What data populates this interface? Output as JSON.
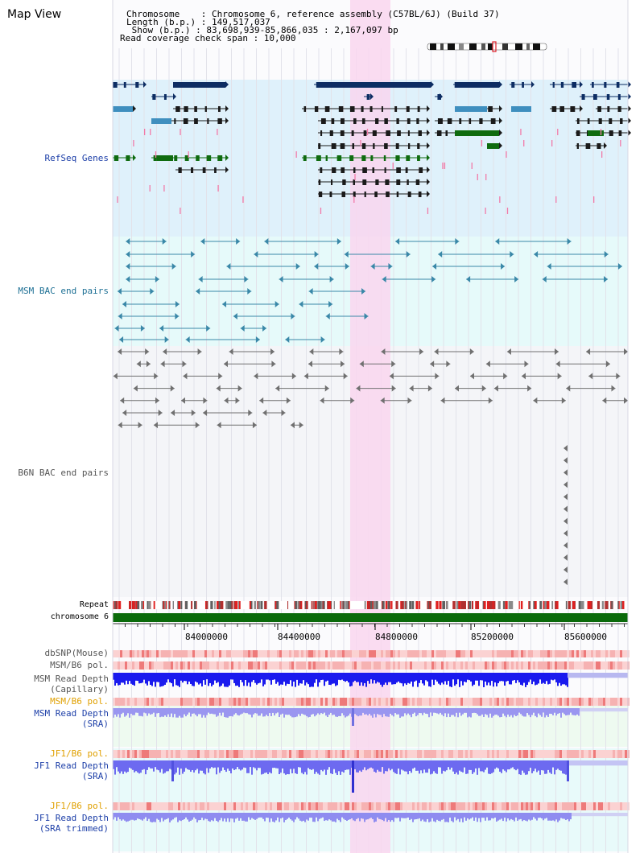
{
  "view_title": "Map View",
  "header": {
    "line1": "Chromosome    : Chromosome 6, reference assembly (C57BL/6J) (Build 37)",
    "line2": "Length (b.p.) : 149,517,037",
    "line3": " Show (b.p.) : 83,698,939-85,866,035 : 2,167,097 bp",
    "line4": "Read coverage check span : 10,000"
  },
  "tracks": {
    "refseq": "RefSeq Genes",
    "msm_bac": "MSM BAC end pairs",
    "b6n_bac": "B6N BAC end pairs",
    "repeat": "Repeat",
    "chrom": "chromosome 6",
    "dbsnp": "dbSNP(Mouse)",
    "msm_pol": "MSM/B6 pol.",
    "msm_cap_1": "MSM Read Depth",
    "msm_cap_2": "(Capillary)",
    "msm_pol2": "MSM/B6 pol.",
    "msm_sra_1": "MSM Read Depth",
    "msm_sra_2": "(SRA)",
    "jf1_pol": "JF1/B6 pol.",
    "jf1_sra_1": "JF1 Read Depth",
    "jf1_sra_2": "(SRA)",
    "jf1_pol2": "JF1/B6 pol.",
    "jf1_trim_1": "JF1 Read Depth",
    "jf1_trim_2": "(SRA trimmed)"
  },
  "axis": {
    "ticks": [
      "84000000",
      "84400000",
      "84800000",
      "85200000",
      "85600000"
    ]
  },
  "colors": {
    "refseq_bg": "#dff1fb",
    "msm_bac_bg": "#e6fafa",
    "b6n_bac_bg": "#f4f5f8",
    "highlight": "#f9d6ef",
    "gene_dark": "#0d2d63",
    "gene_teal": "#3f8fbf",
    "gene_green": "#0f6b0f",
    "msm_bac_line": "#3a88a8",
    "b6n_line": "#707070",
    "chrom_bar": "#0a6a0a",
    "label_blue": "#1d3fa8",
    "label_teal": "#1c6f94",
    "label_gray": "#555555",
    "label_orange": "#e0a000"
  }
}
